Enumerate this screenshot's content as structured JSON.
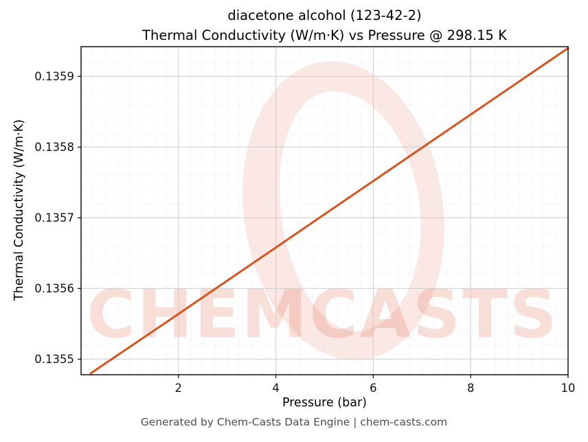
{
  "figure": {
    "title_line1": "diacetone alcohol (123-42-2)",
    "title_line2": "Thermal Conductivity (W/m·K) vs Pressure @ 298.15 K",
    "footer": "Generated by Chem-Casts Data Engine | chem-casts.com"
  },
  "watermark": {
    "text": "CHEMCASTS",
    "text_color": "rgba(224, 88, 56, 0.20)",
    "ring_color": "rgba(224, 88, 56, 0.14)"
  },
  "chart_data": {
    "type": "line",
    "title": "diacetone alcohol (123-42-2) — Thermal Conductivity (W/m·K) vs Pressure @ 298.15 K",
    "substance": "diacetone alcohol",
    "cas_number": "123-42-2",
    "temperature_label": "298.15 K",
    "xlabel": "Pressure (bar)",
    "ylabel": "Thermal Conductivity (W/m·K)",
    "x": [
      0.2,
      2,
      4,
      6,
      8,
      10
    ],
    "y": [
      0.13548,
      0.135564,
      0.135658,
      0.135752,
      0.135846,
      0.13594
    ],
    "xlim": [
      0,
      10
    ],
    "ylim": [
      0.135478,
      0.135942
    ],
    "xticks": [
      2,
      4,
      6,
      8,
      10
    ],
    "xtick_labels": [
      "2",
      "4",
      "6",
      "8",
      "10"
    ],
    "yticks": [
      0.1355,
      0.1356,
      0.1357,
      0.1358,
      0.1359
    ],
    "ytick_labels": [
      "0.1355",
      "0.1356",
      "0.1357",
      "0.1358",
      "0.1359"
    ],
    "minor_grid_step_x": 0.25,
    "minor_grid_step_y": 2e-05,
    "grid": true,
    "legend": "none",
    "line_color": "#d9531c",
    "line_width": 3
  }
}
